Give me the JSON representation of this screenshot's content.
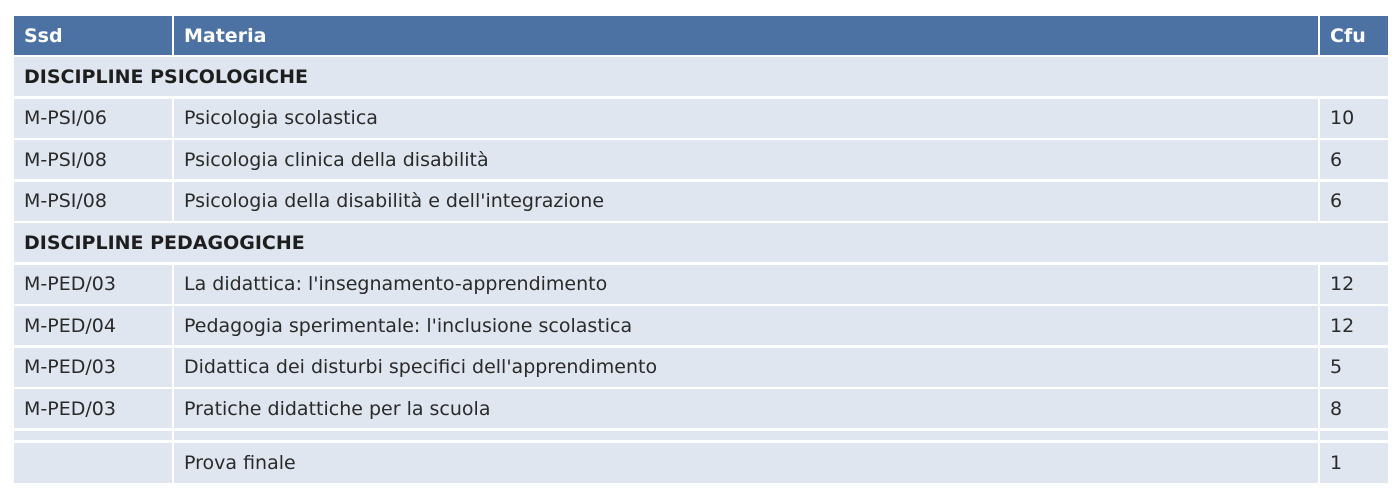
{
  "table": {
    "header": [
      "Ssd",
      "Materia",
      "Cfu"
    ],
    "sections": [
      {
        "title": "DISCIPLINE PSICOLOGICHE",
        "rows": [
          [
            "M-PSI/06",
            "Psicologia scolastica",
            "10"
          ],
          [
            "M-PSI/08",
            "Psicologia clinica della disabilità",
            "6"
          ],
          [
            "M-PSI/08",
            "Psicologia della disabilità e dell'integrazione",
            "6"
          ]
        ]
      },
      {
        "title": "DISCIPLINE PEDAGOGICHE",
        "rows": [
          [
            "M-PED/03",
            "La didattica: l'insegnamento-apprendimento",
            "12"
          ],
          [
            "M-PED/04",
            "Pedagogia sperimentale: l'inclusione scolastica",
            "12"
          ],
          [
            "M-PED/03",
            "Didattica dei disturbi specifici dell'apprendimento",
            "5"
          ],
          [
            "M-PED/03",
            "Pratiche didattiche per la scuola",
            "8"
          ]
        ]
      }
    ],
    "final_row": [
      "Prova finale",
      "1"
    ]
  }
}
